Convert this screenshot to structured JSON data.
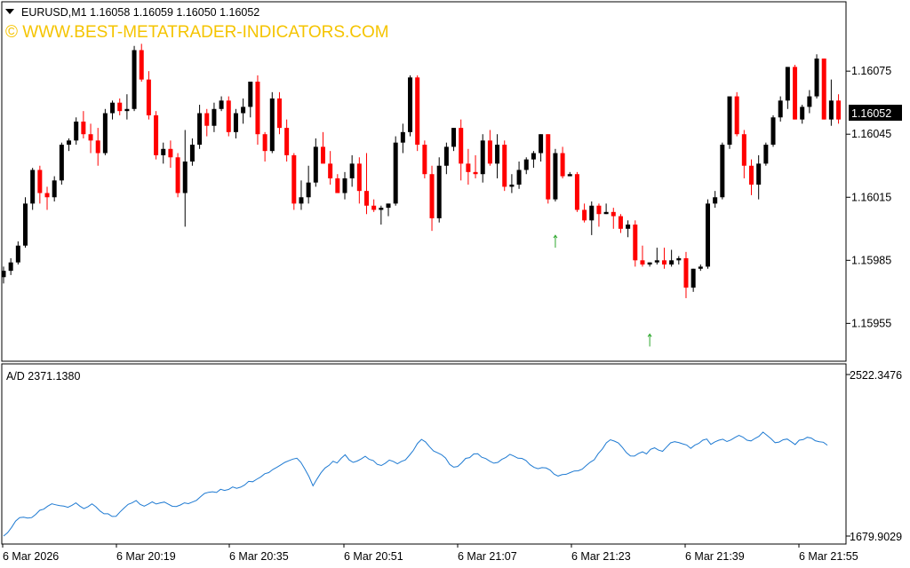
{
  "header": {
    "symbol_line": "EURUSD,M1  1.16058 1.16059 1.16050 1.16052",
    "watermark": "© WWW.BEST-METATRADER-INDICATORS.COM",
    "current_price": "1.16052"
  },
  "indicator": {
    "label": "A/D 2371.1380",
    "max_label": "2522.3476",
    "min_label": "1679.9029"
  },
  "colors": {
    "bull": "#000000",
    "bear": "#ff0000",
    "ad_line": "#1e7ad2",
    "arrow": "#2ea82e",
    "frame": "#000000",
    "background": "#ffffff"
  },
  "chart_data": [
    {
      "type": "candlestick",
      "symbol": "EURUSD",
      "timeframe": "M1",
      "ylim": [
        1.15937,
        1.16108
      ],
      "y_ticks": [
        "1.16075",
        "1.16045",
        "1.16015",
        "1.15985",
        "1.15955"
      ],
      "x_ticks": [
        "6 Mar 2026",
        "6 Mar 20:19",
        "6 Mar 20:35",
        "6 Mar 20:51",
        "6 Mar 21:07",
        "6 Mar 21:23",
        "6 Mar 21:39",
        "6 Mar 21:55"
      ],
      "candles_ohlc": [
        [
          1.15977,
          1.15982,
          1.15974,
          1.1598
        ],
        [
          1.1598,
          1.15986,
          1.15978,
          1.15984
        ],
        [
          1.15984,
          1.15994,
          1.15983,
          1.15992
        ],
        [
          1.15992,
          1.16015,
          1.15991,
          1.16012
        ],
        [
          1.16012,
          1.16029,
          1.16009,
          1.16028
        ],
        [
          1.16028,
          1.1603,
          1.16012,
          1.16017
        ],
        [
          1.16017,
          1.1602,
          1.16009,
          1.16015
        ],
        [
          1.16015,
          1.16025,
          1.16013,
          1.16023
        ],
        [
          1.16023,
          1.16041,
          1.16021,
          1.1604
        ],
        [
          1.1604,
          1.16043,
          1.16037,
          1.16042
        ],
        [
          1.16042,
          1.16053,
          1.1604,
          1.16051
        ],
        [
          1.16051,
          1.16056,
          1.16043,
          1.16045
        ],
        [
          1.16045,
          1.1605,
          1.16036,
          1.16042
        ],
        [
          1.16042,
          1.16048,
          1.1603,
          1.16036
        ],
        [
          1.16036,
          1.16057,
          1.16035,
          1.16055
        ],
        [
          1.16055,
          1.16061,
          1.16052,
          1.1606
        ],
        [
          1.1606,
          1.16062,
          1.16054,
          1.16056
        ],
        [
          1.16056,
          1.16064,
          1.16052,
          1.16057
        ],
        [
          1.16057,
          1.16087,
          1.16056,
          1.16085
        ],
        [
          1.16085,
          1.16088,
          1.1607,
          1.16071
        ],
        [
          1.16071,
          1.16075,
          1.16052,
          1.16054
        ],
        [
          1.16054,
          1.16056,
          1.16033,
          1.16035
        ],
        [
          1.16035,
          1.16041,
          1.16031,
          1.16038
        ],
        [
          1.16038,
          1.16042,
          1.16029,
          1.16034
        ],
        [
          1.16034,
          1.16036,
          1.16015,
          1.16017
        ],
        [
          1.16017,
          1.16047,
          1.16001,
          1.16032
        ],
        [
          1.16032,
          1.16043,
          1.1603,
          1.1604
        ],
        [
          1.1604,
          1.16059,
          1.16038,
          1.16055
        ],
        [
          1.16055,
          1.16057,
          1.16044,
          1.16049
        ],
        [
          1.16049,
          1.1606,
          1.16046,
          1.16057
        ],
        [
          1.16057,
          1.16063,
          1.16056,
          1.16061
        ],
        [
          1.16061,
          1.16063,
          1.16044,
          1.16046
        ],
        [
          1.16046,
          1.16057,
          1.16043,
          1.16055
        ],
        [
          1.16055,
          1.16062,
          1.1605,
          1.16058
        ],
        [
          1.16058,
          1.1607,
          1.16053,
          1.1607
        ],
        [
          1.1607,
          1.16073,
          1.1604,
          1.16045
        ],
        [
          1.16045,
          1.16046,
          1.16032,
          1.16037
        ],
        [
          1.16037,
          1.16065,
          1.16036,
          1.16062
        ],
        [
          1.16062,
          1.16065,
          1.16045,
          1.16048
        ],
        [
          1.16048,
          1.16052,
          1.16032,
          1.16035
        ],
        [
          1.16035,
          1.16036,
          1.16009,
          1.16012
        ],
        [
          1.16012,
          1.16023,
          1.16009,
          1.16015
        ],
        [
          1.16015,
          1.1603,
          1.16012,
          1.16022
        ],
        [
          1.16022,
          1.16043,
          1.1602,
          1.16039
        ],
        [
          1.16039,
          1.16046,
          1.16031,
          1.16031
        ],
        [
          1.16031,
          1.16037,
          1.16021,
          1.16024
        ],
        [
          1.16024,
          1.16026,
          1.16017,
          1.16017
        ],
        [
          1.16017,
          1.16027,
          1.16014,
          1.16024
        ],
        [
          1.16024,
          1.16035,
          1.1602,
          1.16031
        ],
        [
          1.16031,
          1.16034,
          1.16012,
          1.16018
        ],
        [
          1.16018,
          1.16036,
          1.16007,
          1.16011
        ],
        [
          1.16011,
          1.16014,
          1.16008,
          1.16009
        ],
        [
          1.16009,
          1.16011,
          1.16002,
          1.1601
        ],
        [
          1.1601,
          1.16012,
          1.16006,
          1.16012
        ],
        [
          1.16012,
          1.16044,
          1.16011,
          1.16041
        ],
        [
          1.16041,
          1.1605,
          1.16036,
          1.16046
        ],
        [
          1.16046,
          1.16073,
          1.16044,
          1.16072
        ],
        [
          1.16072,
          1.16073,
          1.16037,
          1.1604
        ],
        [
          1.1604,
          1.16042,
          1.16024,
          1.16026
        ],
        [
          1.16026,
          1.1603,
          1.15999,
          1.16005
        ],
        [
          1.16005,
          1.16034,
          1.16003,
          1.1603
        ],
        [
          1.1603,
          1.16041,
          1.16026,
          1.16039
        ],
        [
          1.16039,
          1.16048,
          1.16037,
          1.16048
        ],
        [
          1.16048,
          1.16052,
          1.16023,
          1.16031
        ],
        [
          1.16031,
          1.16038,
          1.16021,
          1.16027
        ],
        [
          1.16027,
          1.16035,
          1.16024,
          1.16026
        ],
        [
          1.16026,
          1.16045,
          1.16022,
          1.16042
        ],
        [
          1.16042,
          1.16047,
          1.1603,
          1.16031
        ],
        [
          1.16031,
          1.16045,
          1.16024,
          1.1604
        ],
        [
          1.1604,
          1.16042,
          1.16018,
          1.1602
        ],
        [
          1.1602,
          1.16026,
          1.16017,
          1.16021
        ],
        [
          1.16021,
          1.16032,
          1.16019,
          1.16028
        ],
        [
          1.16028,
          1.16034,
          1.16026,
          1.16033
        ],
        [
          1.16033,
          1.16037,
          1.16029,
          1.16036
        ],
        [
          1.16036,
          1.16045,
          1.16032,
          1.16045
        ],
        [
          1.16045,
          1.16045,
          1.16012,
          1.16014
        ],
        [
          1.16014,
          1.16038,
          1.16013,
          1.16036
        ],
        [
          1.16036,
          1.16039,
          1.16024,
          1.16025
        ],
        [
          1.16025,
          1.16027,
          1.16025,
          1.16026
        ],
        [
          1.16026,
          1.16027,
          1.16008,
          1.16009
        ],
        [
          1.16009,
          1.16012,
          1.16003,
          1.16004
        ],
        [
          1.16004,
          1.16013,
          1.15997,
          1.16011
        ],
        [
          1.16011,
          1.16012,
          1.16001,
          1.16007
        ],
        [
          1.16007,
          1.16012,
          1.16007,
          1.16008
        ],
        [
          1.16008,
          1.1601,
          1.16,
          1.16006
        ],
        [
          1.16006,
          1.16007,
          1.15998,
          1.16
        ],
        [
          1.16,
          1.16004,
          1.15996,
          1.16002
        ],
        [
          1.16002,
          1.16004,
          1.15982,
          1.15985
        ],
        [
          1.15985,
          1.15992,
          1.15982,
          1.15983
        ],
        [
          1.15983,
          1.15984,
          1.15982,
          1.15984
        ],
        [
          1.15984,
          1.15991,
          1.15983,
          1.15985
        ],
        [
          1.15985,
          1.15991,
          1.15981,
          1.15983
        ],
        [
          1.15983,
          1.1599,
          1.15982,
          1.15985
        ],
        [
          1.15985,
          1.15987,
          1.15983,
          1.15986
        ],
        [
          1.15986,
          1.15989,
          1.15967,
          1.15972
        ],
        [
          1.15972,
          1.15981,
          1.1597,
          1.15981
        ],
        [
          1.15981,
          1.15983,
          1.1598,
          1.15982
        ],
        [
          1.15982,
          1.16014,
          1.15981,
          1.16012
        ],
        [
          1.16012,
          1.16018,
          1.1601,
          1.16015
        ],
        [
          1.16015,
          1.16041,
          1.16014,
          1.1604
        ],
        [
          1.1604,
          1.16059,
          1.16038,
          1.16063
        ],
        [
          1.16063,
          1.16065,
          1.16044,
          1.16045
        ],
        [
          1.16045,
          1.16047,
          1.16024,
          1.1603
        ],
        [
          1.1603,
          1.16033,
          1.16016,
          1.16021
        ],
        [
          1.16021,
          1.16035,
          1.16014,
          1.16031
        ],
        [
          1.16031,
          1.16041,
          1.1603,
          1.1604
        ],
        [
          1.1604,
          1.16054,
          1.16039,
          1.16053
        ],
        [
          1.16053,
          1.16063,
          1.16051,
          1.16061
        ],
        [
          1.16061,
          1.16077,
          1.16057,
          1.16077
        ],
        [
          1.16077,
          1.16078,
          1.16052,
          1.16052
        ],
        [
          1.16052,
          1.16059,
          1.1605,
          1.16058
        ],
        [
          1.16058,
          1.16066,
          1.16055,
          1.16063
        ],
        [
          1.16063,
          1.16083,
          1.16062,
          1.16081
        ],
        [
          1.16081,
          1.16081,
          1.16052,
          1.16052
        ],
        [
          1.16052,
          1.16071,
          1.16049,
          1.16061
        ],
        [
          1.16061,
          1.16064,
          1.1605,
          1.16052
        ]
      ],
      "last_price": 1.16052
    },
    {
      "type": "line",
      "title": "A/D 2371.1380",
      "ylim": [
        1679.9029,
        2522.3476
      ],
      "series": [
        {
          "values": [
            1679.9,
            1697.0,
            1725.0,
            1758.0,
            1776.0,
            1778.0,
            1774.0,
            1776.0,
            1793.0,
            1814.0,
            1820.0,
            1836.0,
            1848.0,
            1843.0,
            1838.0,
            1836.0,
            1830.0,
            1840.0,
            1853.0,
            1836.0,
            1823.0,
            1833.0,
            1848.0,
            1832.0,
            1811.0,
            1796.0,
            1796.0,
            1782.0,
            1783.0,
            1806.0,
            1826.0,
            1845.0,
            1853.0,
            1865.0,
            1845.0,
            1836.0,
            1846.0,
            1858.0,
            1847.0,
            1853.0,
            1857.0,
            1846.0,
            1835.0,
            1834.0,
            1842.0,
            1853.0,
            1849.0,
            1857.0,
            1866.0,
            1885.0,
            1902.0,
            1908.0,
            1911.0,
            1907.0,
            1924.0,
            1918.0,
            1923.0,
            1936.0,
            1929.0,
            1935.0,
            1946.0,
            1965.0,
            1963.0,
            1976.0,
            1988.0,
            2005.0,
            2011.0,
            2027.0,
            2038.0,
            2051.0,
            2064.0,
            2073.0,
            2081.0,
            2086.0,
            2064.0,
            2029.0,
            1990.0,
            1942.0,
            1977.0,
            2010.0,
            2035.0,
            2049.0,
            2070.0,
            2061.0,
            2085.0,
            2104.0,
            2077.0,
            2064.0,
            2071.0,
            2082.0,
            2096.0,
            2080.0,
            2074.0,
            2054.0,
            2048.0,
            2060.0,
            2076.0,
            2069.0,
            2057.0,
            2069.0,
            2077.0,
            2101.0,
            2127.0,
            2163.0,
            2184.0,
            2171.0,
            2146.0,
            2124.0,
            2114.0,
            2104.0,
            2087.0,
            2054.0,
            2039.0,
            2043.0,
            2062.0,
            2085.0,
            2089.0,
            2108.0,
            2109.0,
            2091.0,
            2084.0,
            2070.0,
            2060.0,
            2064.0,
            2080.0,
            2090.0,
            2106.0,
            2097.0,
            2086.0,
            2085.0,
            2074.0,
            2052.0,
            2038.0,
            2031.0,
            2037.0,
            2035.0,
            2024.0,
            2003.0,
            1993.0,
            2000.0,
            2002.0,
            2011.0,
            2019.0,
            2020.0,
            2029.0,
            2048.0,
            2065.0,
            2078.0,
            2110.0,
            2134.0,
            2166.0,
            2182.0,
            2175.0,
            2165.0,
            2142.0,
            2115.0,
            2098.0,
            2097.0,
            2111.0,
            2119.0,
            2108.0,
            2132.0,
            2140.0,
            2128.0,
            2122.0,
            2144.0,
            2166.0,
            2172.0,
            2168.0,
            2161.0,
            2155.0,
            2137.0,
            2154.0,
            2163.0,
            2180.0,
            2186.0,
            2158.0,
            2171.0,
            2180.0,
            2185.0,
            2173.0,
            2181.0,
            2194.0,
            2205.0,
            2196.0,
            2180.0,
            2176.0,
            2189.0,
            2200.0,
            2222.0,
            2205.0,
            2187.0,
            2167.0,
            2170.0,
            2182.0,
            2186.0,
            2172.0,
            2157.0,
            2180.0,
            2183.0,
            2195.0,
            2191.0,
            2177.0,
            2172.0,
            2169.0,
            2154.0
          ]
        }
      ]
    }
  ]
}
